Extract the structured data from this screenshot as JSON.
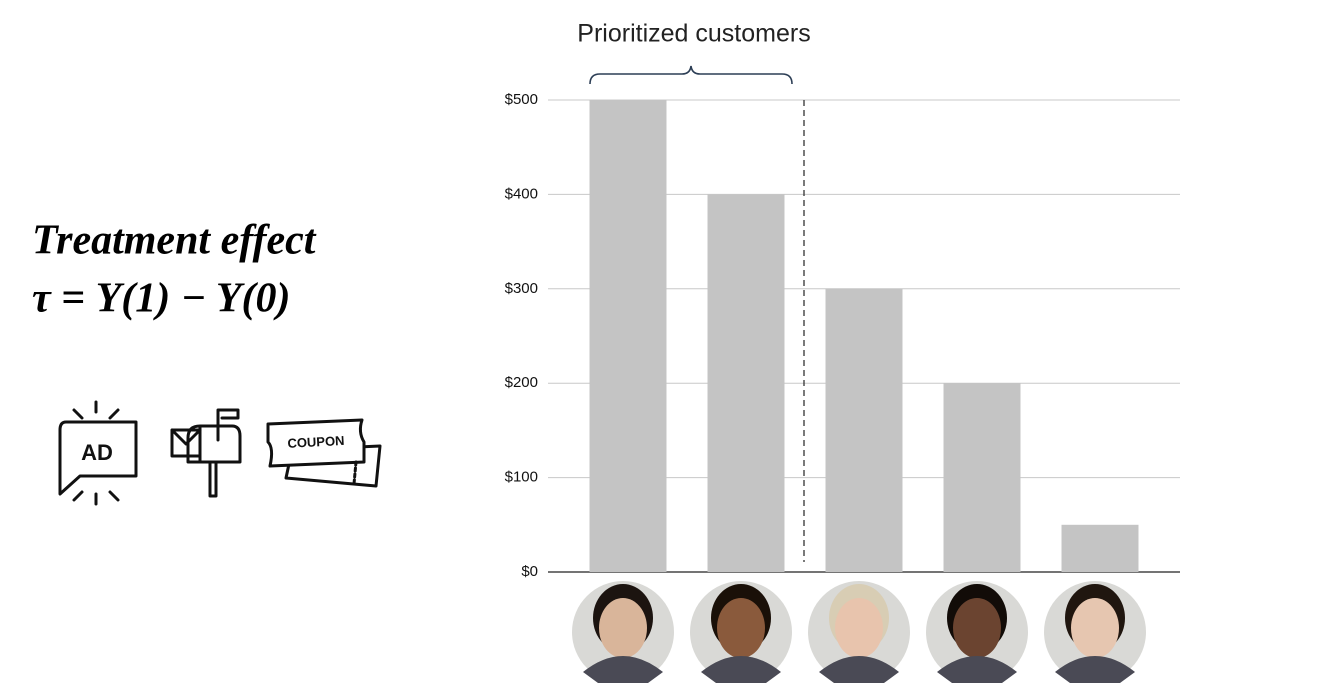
{
  "chart_data": {
    "type": "bar",
    "annotation": "Prioritized customers",
    "categories": [
      null,
      null,
      null,
      null,
      null
    ],
    "values": [
      500,
      400,
      300,
      200,
      50
    ],
    "color": "#c4c4c4",
    "ylim": [
      0,
      500
    ],
    "yticks": [
      {
        "value": 0,
        "label": "$0"
      },
      {
        "value": 100,
        "label": "$100"
      },
      {
        "value": 200,
        "label": "$200"
      },
      {
        "value": 300,
        "label": "$300"
      },
      {
        "value": 400,
        "label": "$400"
      },
      {
        "value": 500,
        "label": "$500"
      }
    ],
    "grid": true
  },
  "side": {
    "title": "Treatment effect",
    "formula": "τ = Y(1) − Y(0)",
    "icons": [
      "AD",
      "COUPON"
    ]
  }
}
